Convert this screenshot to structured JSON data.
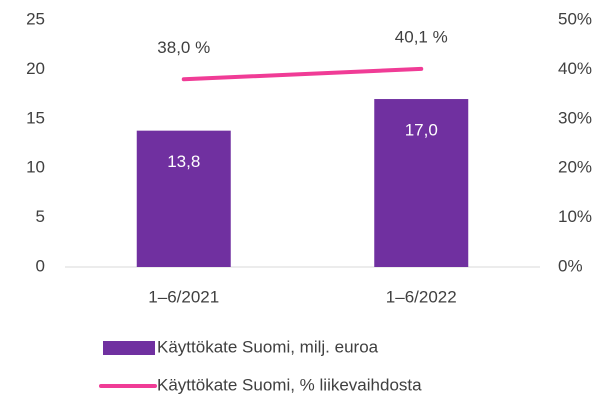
{
  "chart_data": {
    "type": "bar",
    "categories": [
      "1–6/2021",
      "1–6/2022"
    ],
    "series": [
      {
        "name": "Käyttökate Suomi, milj. euroa",
        "type": "bar",
        "color": "#7030a0",
        "values": [
          13.8,
          17.0
        ],
        "value_labels": [
          "13,8",
          "17,0"
        ]
      },
      {
        "name": "Käyttökate Suomi, % liikevaihdosta",
        "type": "line",
        "axis": "y2",
        "color": "#f03c96",
        "values": [
          38.0,
          40.1
        ],
        "value_labels": [
          "38,0 %",
          "40,1 %"
        ]
      }
    ],
    "ylim": [
      0,
      25
    ],
    "yticks": [
      0,
      5,
      10,
      15,
      20,
      25
    ],
    "y2lim": [
      0,
      50
    ],
    "y2ticks": [
      {
        "value": 0,
        "label": "0%"
      },
      {
        "value": 10,
        "label": "10%"
      },
      {
        "value": 20,
        "label": "20%"
      },
      {
        "value": 30,
        "label": "30%"
      },
      {
        "value": 40,
        "label": "40%"
      },
      {
        "value": 50,
        "label": "50%"
      }
    ],
    "grid": false,
    "legend": "bottom"
  }
}
